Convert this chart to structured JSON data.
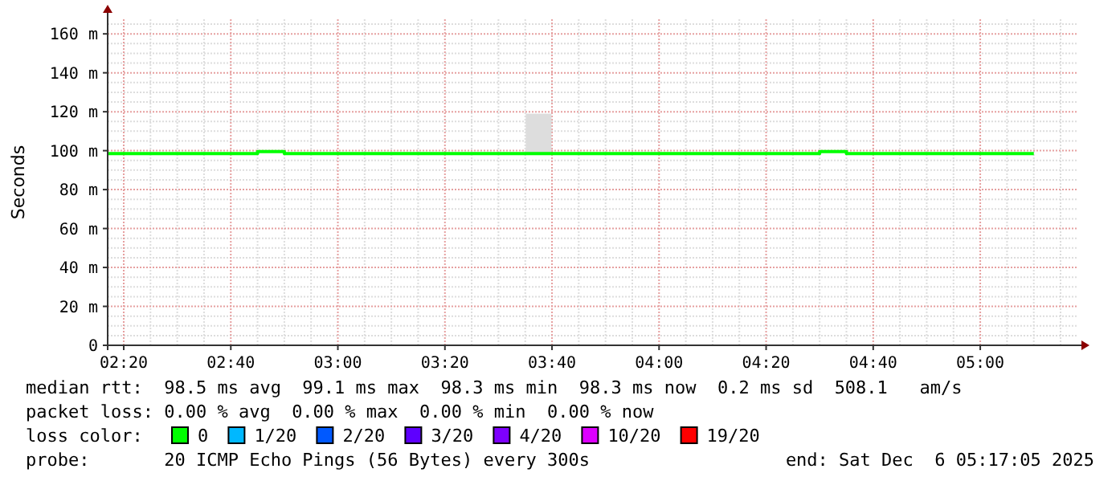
{
  "chart_data": {
    "type": "step",
    "ylabel": "Seconds",
    "legend_title": "loss color:",
    "legend": "bottom",
    "grid": true,
    "marker": "none",
    "line_style": "solid",
    "xlim": [
      2.2833,
      5.3
    ],
    "ylim": [
      0,
      167.5
    ],
    "xticks": [
      {
        "value": 2.3333,
        "label": "02:20"
      },
      {
        "value": 2.6667,
        "label": "02:40"
      },
      {
        "value": 3,
        "label": "03:00"
      },
      {
        "value": 3.3333,
        "label": "03:20"
      },
      {
        "value": 3.6667,
        "label": "03:40"
      },
      {
        "value": 4,
        "label": "04:00"
      },
      {
        "value": 4.3333,
        "label": "04:20"
      },
      {
        "value": 4.6667,
        "label": "04:40"
      },
      {
        "value": 5,
        "label": "05:00"
      }
    ],
    "yticks": [
      0,
      {
        "value": 20,
        "label": "20 m"
      },
      {
        "value": 40,
        "label": "40 m"
      },
      {
        "value": 60,
        "label": "60 m"
      },
      {
        "value": 80,
        "label": "80 m"
      },
      {
        "value": 100,
        "label": "100 m"
      },
      {
        "value": 120,
        "label": "120 m"
      },
      {
        "value": 140,
        "label": "140 m"
      },
      {
        "value": 160,
        "label": "160 m"
      }
    ],
    "series": [
      {
        "name": "0",
        "color": "#00ff00",
        "x": [
          2.2833,
          2.75,
          2.8333,
          3.5833,
          3.6667,
          4.5,
          4.5833,
          5.1667
        ],
        "values": [
          98.5,
          99.5,
          98.5,
          98.5,
          98.5,
          99.5,
          98.5,
          98.5
        ]
      },
      {
        "type": "bar",
        "color": "#dddddd",
        "x": [
          3.625
        ],
        "values": [
          20.5
        ],
        "base": [
          98.5
        ]
      },
      {
        "name": "1/20",
        "color": "#00b8ff"
      },
      {
        "name": "2/20",
        "color": "#0059ff"
      },
      {
        "name": "3/20",
        "color": "#5e00ff"
      },
      {
        "name": "4/20",
        "color": "#7e00ff"
      },
      {
        "name": "10/20",
        "color": "#dd00ff"
      },
      {
        "name": "19/20",
        "color": "#ff0000"
      }
    ],
    "annotations": [
      "median rtt:  98.5 ms avg  99.1 ms max  98.3 ms min  98.3 ms now  0.2 ms sd  508.1   am/s",
      "packet loss: 0.00 % avg  0.00 % max  0.00 % min  0.00 % now",
      "probe:       20 ICMP Echo Pings (56 Bytes) every 300s",
      "end: Sat Dec  6 05:17:05 2025"
    ]
  }
}
